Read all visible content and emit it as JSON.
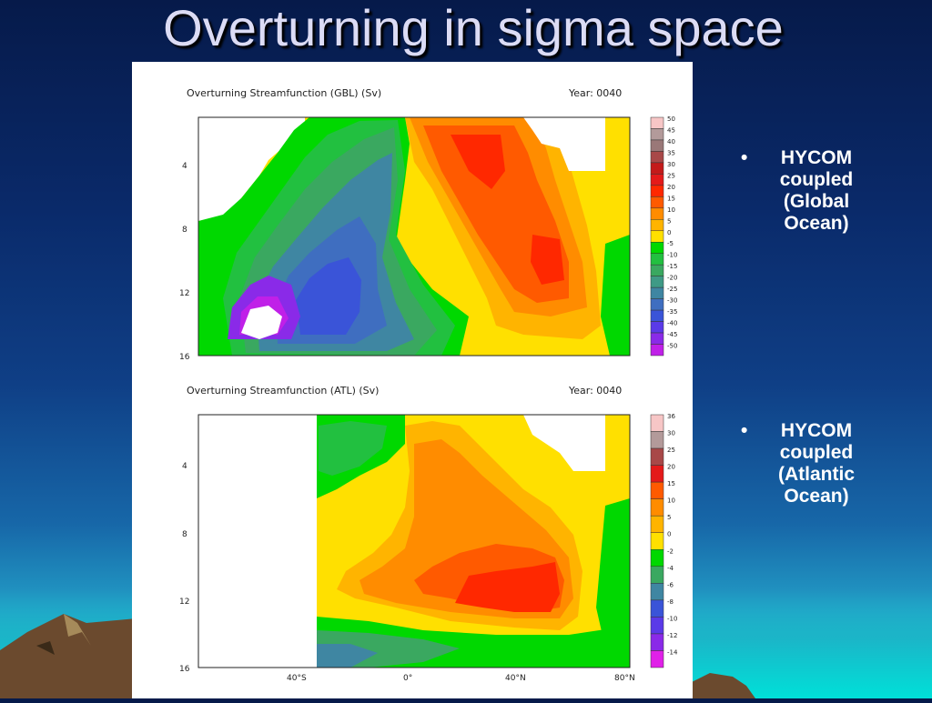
{
  "slide": {
    "title": "Overturning in sigma space",
    "bullets": [
      {
        "marker": "•",
        "lines": [
          "HYCOM",
          "coupled",
          "(Global",
          "Ocean)"
        ]
      },
      {
        "marker": "•",
        "lines": [
          "HYCOM",
          "coupled",
          "(Atlantic",
          "Ocean)"
        ]
      }
    ]
  },
  "chart_data": [
    {
      "type": "heatmap",
      "title": "Overturning Streamfunction (GBL) (Sv)",
      "annotation": "Year: 0040",
      "y_ticks": [
        "4",
        "8",
        "12",
        "16"
      ],
      "y_range": [
        1,
        16
      ],
      "y_inverted": true,
      "x_ticks": [],
      "colorbar": {
        "labels": [
          "50",
          "45",
          "40",
          "35",
          "30",
          "25",
          "20",
          "15",
          "10",
          "5",
          "0",
          "-5",
          "-10",
          "-15",
          "-20",
          "-25",
          "-30",
          "-35",
          "-40",
          "-45",
          "-50"
        ],
        "colors": [
          "#f7c6c6",
          "#b39a9a",
          "#9a7878",
          "#a84848",
          "#c41a1a",
          "#e41a1a",
          "#ff2800",
          "#ff5a00",
          "#ff8c00",
          "#ffb400",
          "#ffe000",
          "#00d800",
          "#22c040",
          "#3aa860",
          "#3f9a86",
          "#3f86a2",
          "#3f6ec0",
          "#3a54d8",
          "#5a3ae8",
          "#8a2ae8",
          "#c020e8"
        ]
      },
      "features": [
        {
          "label": "negative cell (southern hemisphere, deep)",
          "min_approx": -50
        },
        {
          "label": "positive cell (northern hemisphere)",
          "max_approx": 20
        }
      ]
    },
    {
      "type": "heatmap",
      "title": "Overturning Streamfunction (ATL) (Sv)",
      "annotation": "Year: 0040",
      "y_ticks": [
        "4",
        "8",
        "12",
        "16"
      ],
      "y_range": [
        1,
        16
      ],
      "y_inverted": true,
      "x_ticks": [
        "40°S",
        "0°",
        "40°N",
        "80°N"
      ],
      "colorbar": {
        "labels": [
          "36",
          "30",
          "25",
          "20",
          "15",
          "10",
          "5",
          "0",
          "-2",
          "-4",
          "-6",
          "-8",
          "-10",
          "-12",
          "-14"
        ],
        "colors": [
          "#f7c6c6",
          "#b39a9a",
          "#a84848",
          "#e41a1a",
          "#ff5a00",
          "#ff8c00",
          "#ffb400",
          "#ffe000",
          "#00d800",
          "#3aa860",
          "#3f86a2",
          "#3a54d8",
          "#5a3ae8",
          "#8a2ae8",
          "#e020e8"
        ]
      },
      "features": [
        {
          "label": "positive cell (Atlantic MOC)",
          "max_approx": 20
        }
      ]
    }
  ]
}
